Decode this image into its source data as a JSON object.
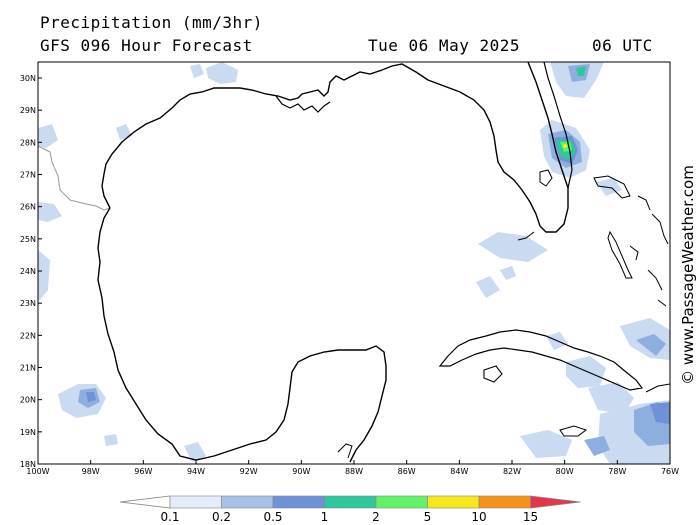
{
  "header": {
    "title": "Precipitation (mm/3hr)",
    "subtitle": "GFS 096 Hour Forecast",
    "date": "Tue 06 May 2025",
    "time": "06 UTC"
  },
  "credit": "© www.PassageWeather.com",
  "axes": {
    "lat_labels": [
      "30N",
      "29N",
      "28N",
      "27N",
      "26N",
      "25N",
      "24N",
      "23N",
      "22N",
      "21N",
      "20N",
      "19N",
      "18N"
    ],
    "lon_labels": [
      "100W",
      "98W",
      "96W",
      "94W",
      "92W",
      "90W",
      "88W",
      "86W",
      "84W",
      "82W",
      "80W",
      "78W",
      "76W"
    ]
  },
  "legend": {
    "labels": [
      "0.1",
      "0.2",
      "0.5",
      "1",
      "2",
      "5",
      "10",
      "15"
    ],
    "colors": [
      "#ffffff",
      "#e3ecf8",
      "#a9c1e6",
      "#6e91d8",
      "#2ec89a",
      "#62f26a",
      "#f6e81c",
      "#f59318",
      "#e8344a"
    ]
  },
  "map": {
    "precip_shading_color": "#c9daf1",
    "precip_heavy_color": "#6e91d8",
    "precip_core_color": "#62f26a",
    "coast_color": "#000000",
    "border_color": "#9a9a9a"
  }
}
